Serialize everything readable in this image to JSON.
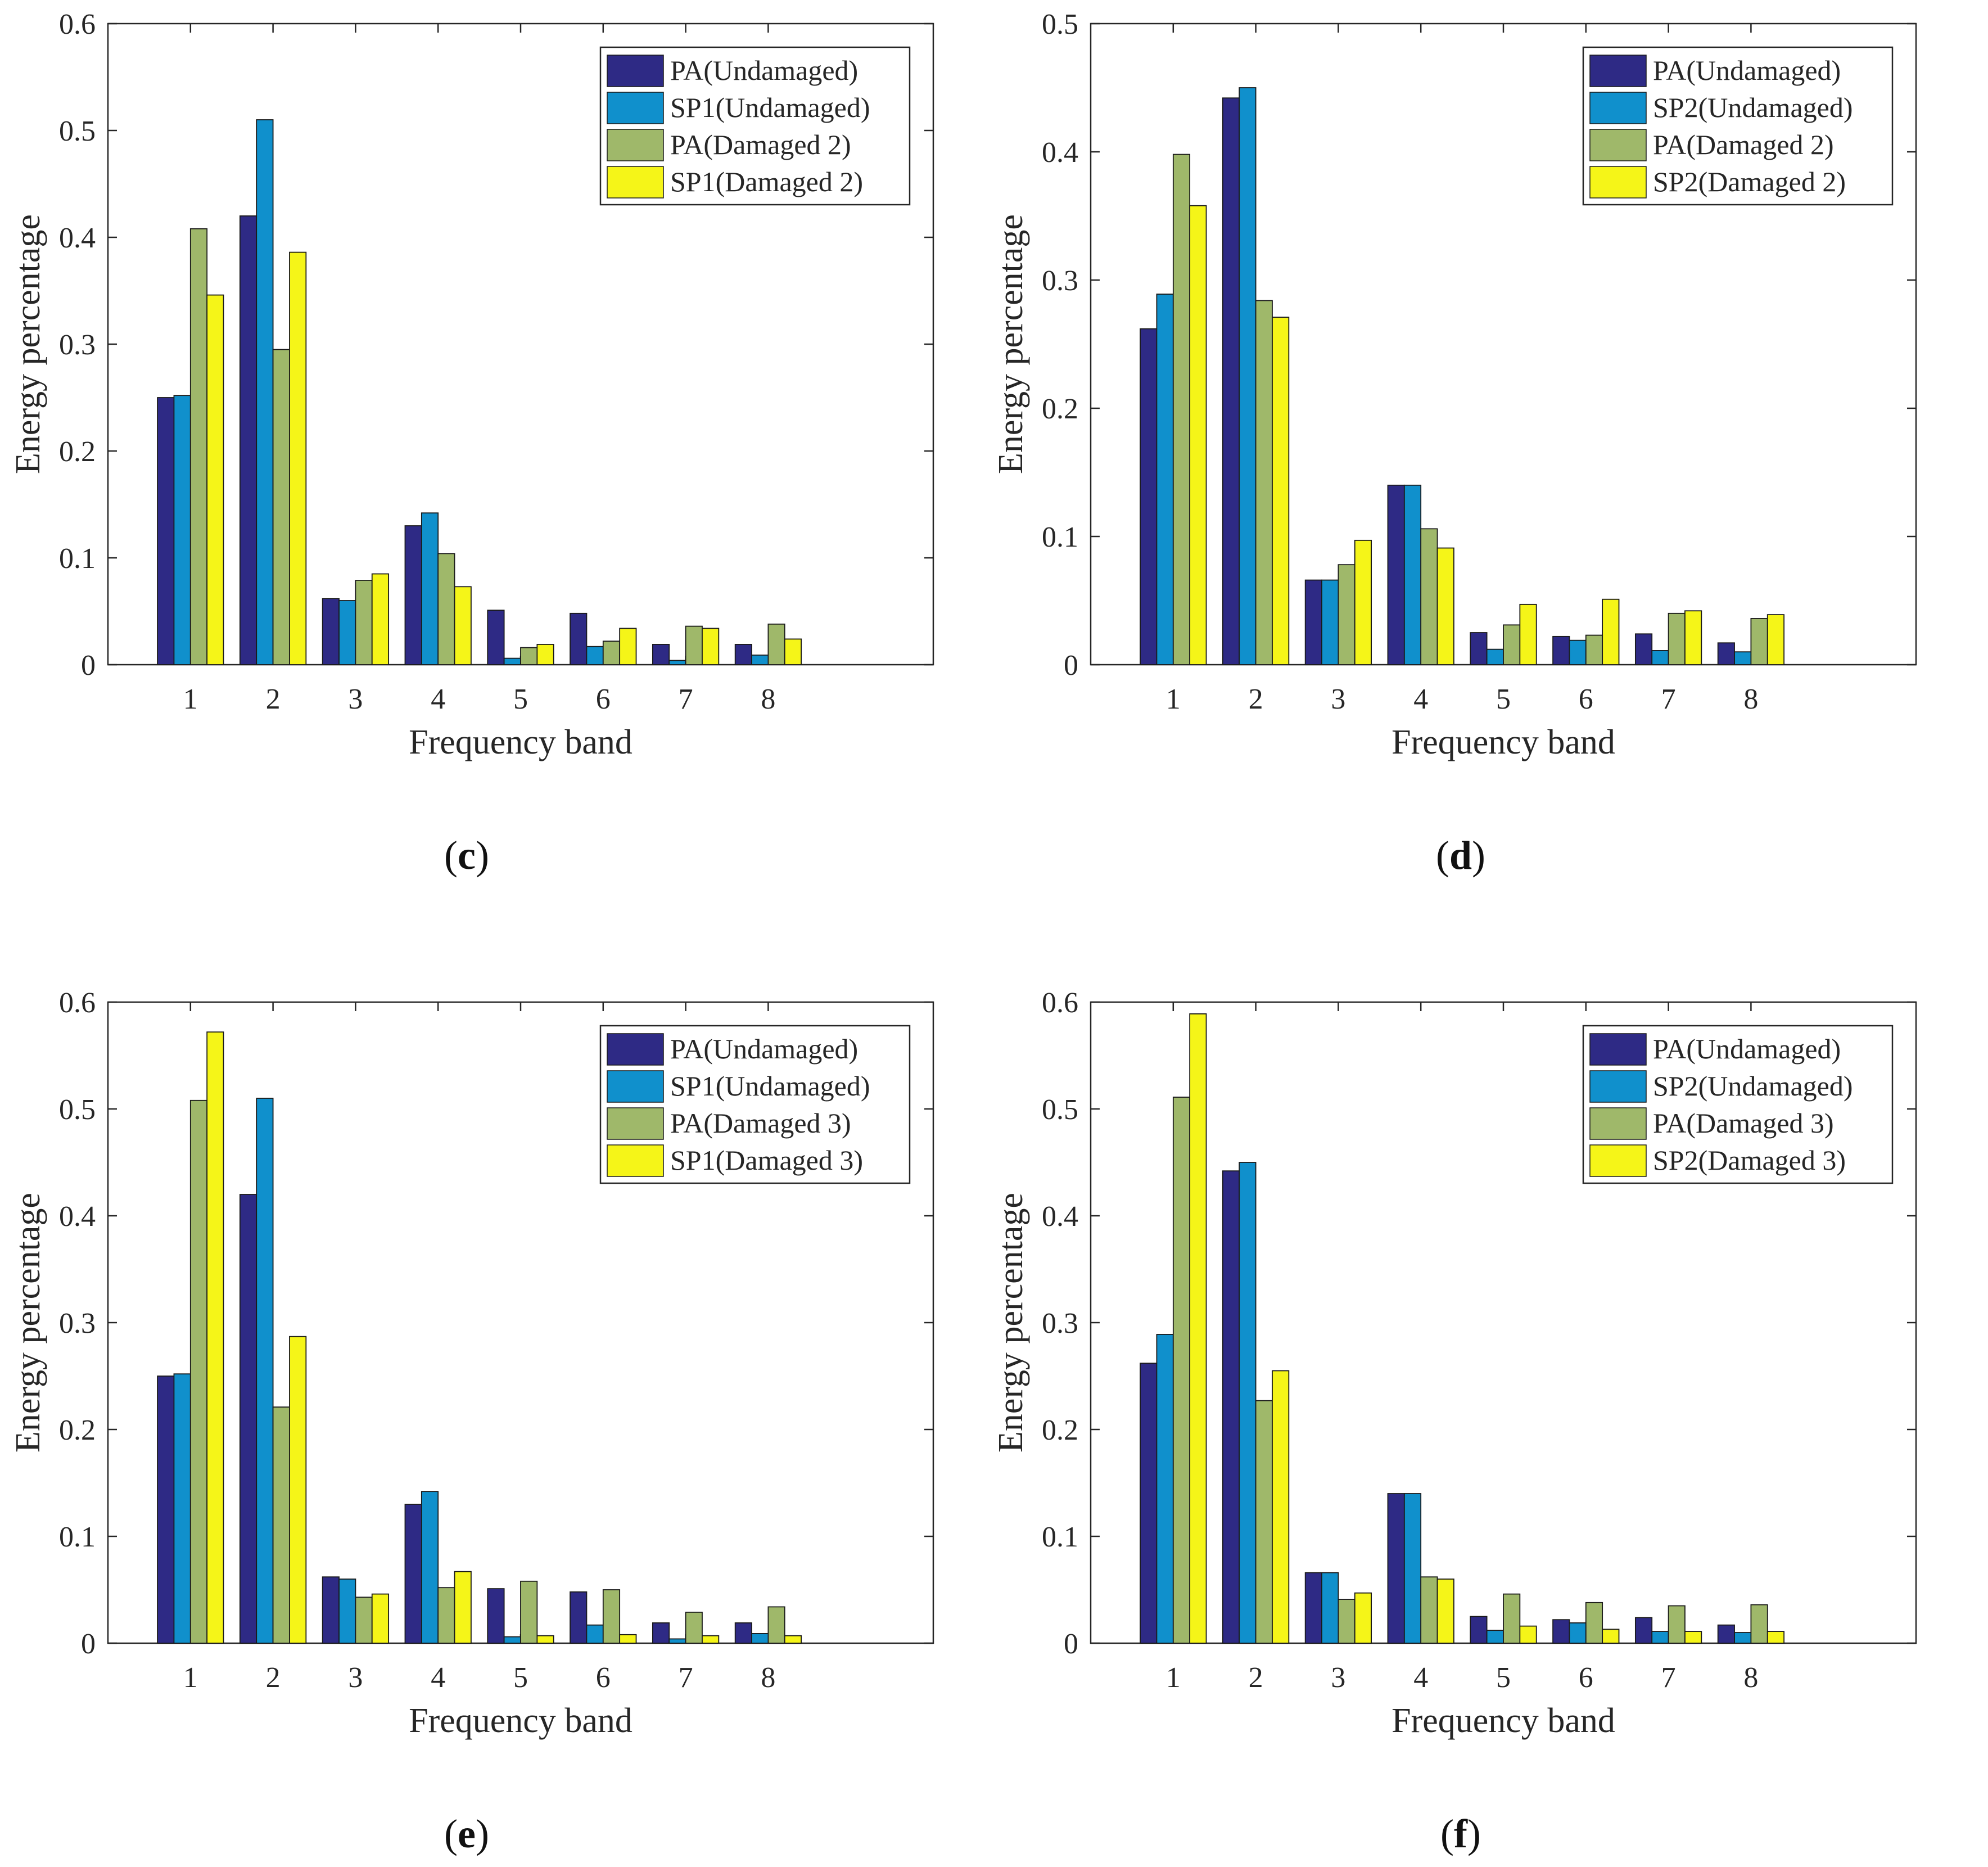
{
  "colors": {
    "pa_undamaged": "#2e2a85",
    "sp_undamaged": "#1090cc",
    "pa_damaged": "#9fb86a",
    "sp_damaged": "#f5f518",
    "axis": "#262626"
  },
  "chart_data": [
    {
      "panel": "c",
      "type": "bar",
      "xlabel": "Frequency band",
      "ylabel": "Energy percentage",
      "categories": [
        "1",
        "2",
        "3",
        "4",
        "5",
        "6",
        "7",
        "8"
      ],
      "ylim": [
        0,
        0.6
      ],
      "yticks": [
        "0",
        "0.1",
        "0.2",
        "0.3",
        "0.4",
        "0.5",
        "0.6"
      ],
      "xlim": [
        0,
        10
      ],
      "legend_position": "top-right",
      "series": [
        {
          "name": "PA(Undamaged)",
          "values": [
            0.25,
            0.42,
            0.062,
            0.13,
            0.051,
            0.048,
            0.019,
            0.019
          ]
        },
        {
          "name": "SP1(Undamaged)",
          "values": [
            0.252,
            0.51,
            0.06,
            0.142,
            0.006,
            0.017,
            0.004,
            0.009
          ]
        },
        {
          "name": "PA(Damaged 2)",
          "values": [
            0.408,
            0.295,
            0.079,
            0.104,
            0.016,
            0.022,
            0.036,
            0.038
          ]
        },
        {
          "name": "SP1(Damaged 2)",
          "values": [
            0.346,
            0.386,
            0.085,
            0.073,
            0.019,
            0.034,
            0.034,
            0.024
          ]
        }
      ]
    },
    {
      "panel": "d",
      "type": "bar",
      "xlabel": "Frequency band",
      "ylabel": "Energy percentage",
      "categories": [
        "1",
        "2",
        "3",
        "4",
        "5",
        "6",
        "7",
        "8"
      ],
      "ylim": [
        0,
        0.5
      ],
      "yticks": [
        "0",
        "0.1",
        "0.2",
        "0.3",
        "0.4",
        "0.5"
      ],
      "xlim": [
        0,
        10
      ],
      "legend_position": "top-right",
      "series": [
        {
          "name": "PA(Undamaged)",
          "values": [
            0.262,
            0.442,
            0.066,
            0.14,
            0.025,
            0.022,
            0.024,
            0.017
          ]
        },
        {
          "name": "SP2(Undamaged)",
          "values": [
            0.289,
            0.45,
            0.066,
            0.14,
            0.012,
            0.019,
            0.011,
            0.01
          ]
        },
        {
          "name": "PA(Damaged 2)",
          "values": [
            0.398,
            0.284,
            0.078,
            0.106,
            0.031,
            0.023,
            0.04,
            0.036
          ]
        },
        {
          "name": "SP2(Damaged 2)",
          "values": [
            0.358,
            0.271,
            0.097,
            0.091,
            0.047,
            0.051,
            0.042,
            0.039
          ]
        }
      ]
    },
    {
      "panel": "e",
      "type": "bar",
      "xlabel": "Frequency band",
      "ylabel": "Energy percentage",
      "categories": [
        "1",
        "2",
        "3",
        "4",
        "5",
        "6",
        "7",
        "8"
      ],
      "ylim": [
        0,
        0.6
      ],
      "yticks": [
        "0",
        "0.1",
        "0.2",
        "0.3",
        "0.4",
        "0.5",
        "0.6"
      ],
      "xlim": [
        0,
        10
      ],
      "legend_position": "top-right",
      "series": [
        {
          "name": "PA(Undamaged)",
          "values": [
            0.25,
            0.42,
            0.062,
            0.13,
            0.051,
            0.048,
            0.019,
            0.019
          ]
        },
        {
          "name": "SP1(Undamaged)",
          "values": [
            0.252,
            0.51,
            0.06,
            0.142,
            0.006,
            0.017,
            0.004,
            0.009
          ]
        },
        {
          "name": "PA(Damaged 3)",
          "values": [
            0.508,
            0.221,
            0.043,
            0.052,
            0.058,
            0.05,
            0.029,
            0.034
          ]
        },
        {
          "name": "SP1(Damaged 3)",
          "values": [
            0.572,
            0.287,
            0.046,
            0.067,
            0.007,
            0.008,
            0.007,
            0.007
          ]
        }
      ]
    },
    {
      "panel": "f",
      "type": "bar",
      "xlabel": "Frequency band",
      "ylabel": "Energy percentage",
      "categories": [
        "1",
        "2",
        "3",
        "4",
        "5",
        "6",
        "7",
        "8"
      ],
      "ylim": [
        0,
        0.6
      ],
      "yticks": [
        "0",
        "0.1",
        "0.2",
        "0.3",
        "0.4",
        "0.5",
        "0.6"
      ],
      "xlim": [
        0,
        10
      ],
      "legend_position": "top-right",
      "series": [
        {
          "name": "PA(Undamaged)",
          "values": [
            0.262,
            0.442,
            0.066,
            0.14,
            0.025,
            0.022,
            0.024,
            0.017
          ]
        },
        {
          "name": "SP2(Undamaged)",
          "values": [
            0.289,
            0.45,
            0.066,
            0.14,
            0.012,
            0.019,
            0.011,
            0.01
          ]
        },
        {
          "name": "PA(Damaged 3)",
          "values": [
            0.511,
            0.227,
            0.041,
            0.062,
            0.046,
            0.038,
            0.035,
            0.036
          ]
        },
        {
          "name": "SP2(Damaged 3)",
          "values": [
            0.589,
            0.255,
            0.047,
            0.06,
            0.016,
            0.013,
            0.011,
            0.011
          ]
        }
      ]
    }
  ]
}
